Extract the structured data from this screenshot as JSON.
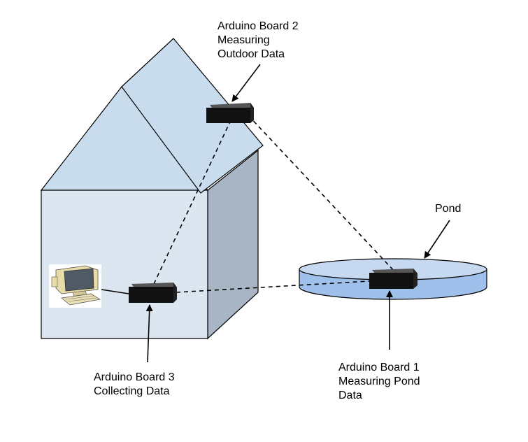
{
  "labels": {
    "board2": [
      "Arduino Board 2",
      "Measuring",
      "Outdoor Data"
    ],
    "board3": [
      "Arduino Board 3",
      "Collecting Data"
    ],
    "board1": [
      "Arduino Board 1",
      "Measuring Pond",
      "Data"
    ],
    "pond": "Pond"
  },
  "colors": {
    "house_front": "#dce6f1",
    "house_side": "#a7b5c4",
    "roof": "#c9dcee",
    "pond_top": "#c6d9f0",
    "pond_side": "#9fc0ea",
    "board": "#111111",
    "outline": "#000000"
  },
  "icons": {
    "computer": "computer-icon"
  }
}
